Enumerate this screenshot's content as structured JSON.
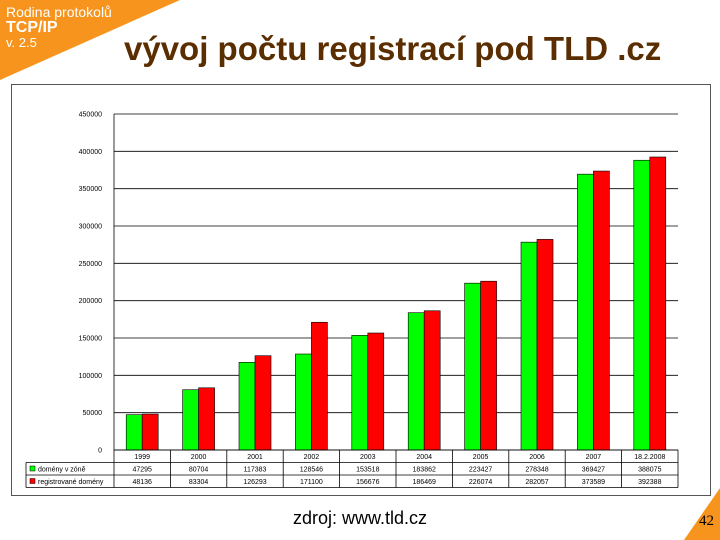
{
  "slide": {
    "course_line1": "Rodina protokolů",
    "course_line2": "TCP/IP",
    "course_line3": "v. 2.5",
    "title": "vývoj počtu registrací pod TLD .cz",
    "source": "zdroj: www.tld.cz",
    "page_number": "42",
    "accent_color": "#f7941d",
    "title_color": "#5a2e00"
  },
  "chart_data": {
    "type": "bar",
    "categories": [
      "1999",
      "2000",
      "2001",
      "2002",
      "2003",
      "2004",
      "2005",
      "2006",
      "2007",
      "18.2.2008"
    ],
    "series": [
      {
        "name": "domény v zóně",
        "color": "#00ff00",
        "values": [
          47295,
          80704,
          117383,
          128546,
          153518,
          183862,
          223427,
          278348,
          369427,
          388075
        ]
      },
      {
        "name": "registrované domény",
        "color": "#ff0000",
        "values": [
          48136,
          83304,
          126293,
          171100,
          156676,
          186469,
          226074,
          282057,
          373589,
          392388
        ]
      }
    ],
    "ylim": [
      0,
      450000
    ],
    "yticks": [
      0,
      50000,
      100000,
      150000,
      200000,
      250000,
      300000,
      350000,
      400000,
      450000
    ],
    "grid": true,
    "legend": "data-table"
  }
}
